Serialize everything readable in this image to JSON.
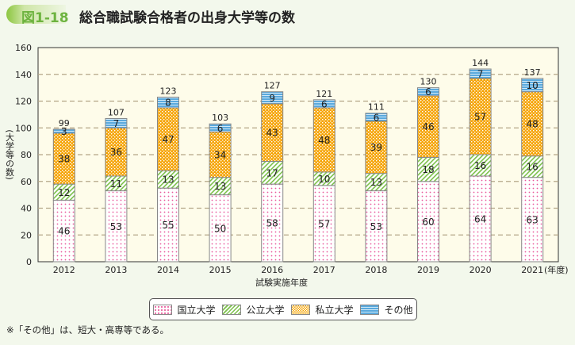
{
  "figure_label": "図1-18",
  "title": "総合職試験合格者の出身大学等の数",
  "note": "※「その他」は、短大・高専等である。",
  "chart_data": {
    "type": "bar",
    "stacked": true,
    "title": "総合職試験合格者の出身大学等の数",
    "xlabel": "試験実施年度",
    "xunit": "(年度)",
    "ylabel": "(大学等の数)",
    "ylim": [
      0,
      160
    ],
    "yticks": [
      0,
      20,
      40,
      60,
      80,
      100,
      120,
      140,
      160
    ],
    "grid": true,
    "legend_position": "bottom",
    "categories": [
      "2012",
      "2013",
      "2014",
      "2015",
      "2016",
      "2017",
      "2018",
      "2019",
      "2020",
      "2021"
    ],
    "series": [
      {
        "name": "国立大学",
        "color": "#e8579a",
        "values": [
          46,
          53,
          55,
          50,
          58,
          57,
          53,
          60,
          64,
          63
        ]
      },
      {
        "name": "公立大学",
        "color": "#7cc04b",
        "values": [
          12,
          11,
          13,
          13,
          17,
          10,
          13,
          18,
          16,
          16
        ]
      },
      {
        "name": "私立大学",
        "color": "#f5a300",
        "values": [
          38,
          36,
          47,
          34,
          43,
          48,
          39,
          46,
          57,
          48
        ]
      },
      {
        "name": "その他",
        "color": "#5aa9dd",
        "values": [
          3,
          7,
          8,
          6,
          9,
          6,
          6,
          6,
          7,
          10
        ]
      }
    ],
    "totals": [
      99,
      107,
      123,
      103,
      127,
      121,
      111,
      130,
      144,
      137
    ]
  }
}
